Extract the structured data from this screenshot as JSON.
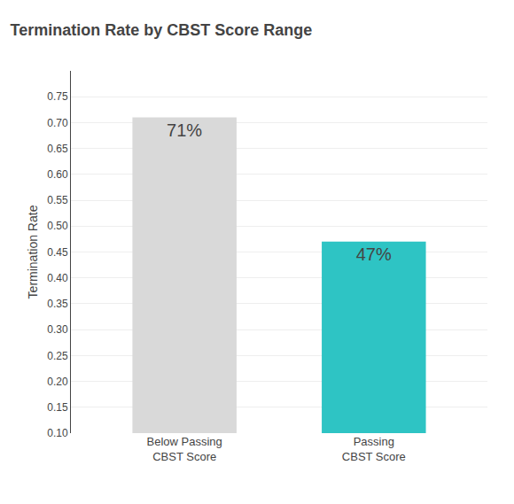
{
  "chart_data": {
    "type": "bar",
    "title": "Termination Rate by CBST Score Range",
    "categories": [
      "Below Passing\nCBST Score",
      "Passing\nCBST Score"
    ],
    "values": [
      0.71,
      0.47
    ],
    "value_labels": [
      "71%",
      "47%"
    ],
    "data_labels": true,
    "colors": [
      "#d9d9d9",
      "#2ec4c4"
    ],
    "ylabel": "Termination Rate",
    "ylim": [
      0.1,
      0.8
    ],
    "yticks": [
      {
        "value": 0.1,
        "label": "0.10"
      },
      0.15,
      {
        "value": 0.2,
        "label": "0.20"
      },
      0.25,
      {
        "value": 0.3,
        "label": "0.30"
      },
      0.35,
      {
        "value": 0.4,
        "label": "0.40"
      },
      0.45,
      {
        "value": 0.5,
        "label": "0.50"
      },
      0.55,
      {
        "value": 0.6,
        "label": "0.60"
      },
      0.65,
      {
        "value": 0.7,
        "label": "0.70"
      },
      0.75
    ],
    "grid": true
  }
}
